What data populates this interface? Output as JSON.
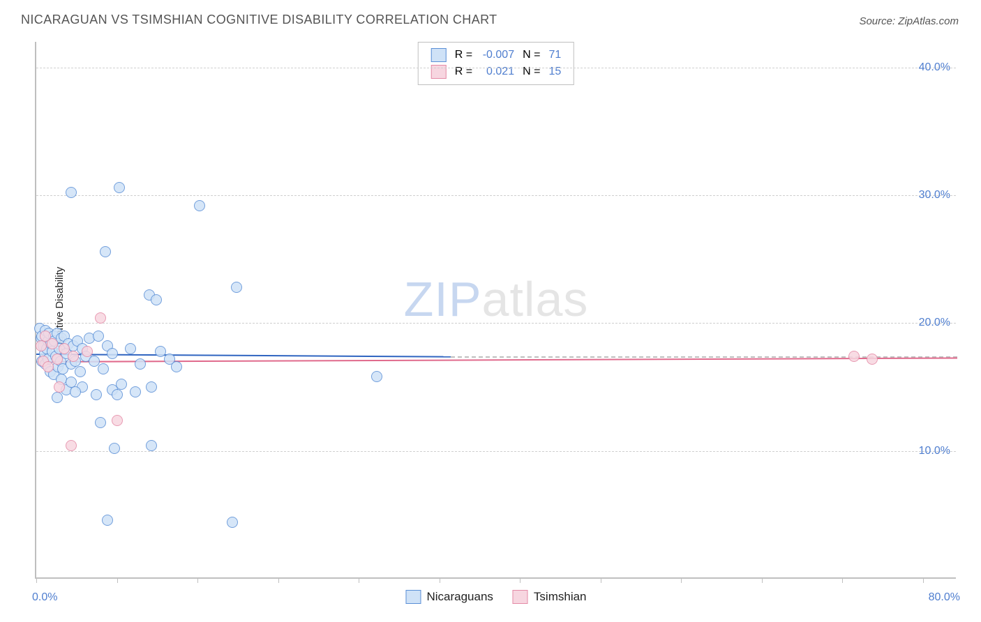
{
  "title": "NICARAGUAN VS TSIMSHIAN COGNITIVE DISABILITY CORRELATION CHART",
  "source": "Source: ZipAtlas.com",
  "ylabel": "Cognitive Disability",
  "watermark": {
    "part1": "ZIP",
    "part2": "atlas"
  },
  "chart": {
    "type": "scatter",
    "background_color": "#ffffff",
    "grid_color": "#cfcfcf",
    "axis_color": "#bfbfbf",
    "tick_label_color": "#4f7ecf",
    "text_color": "#222222",
    "marker_radius": 8,
    "marker_border_width": 1.5,
    "trend_line_width": 2,
    "xlim": [
      0,
      80
    ],
    "ylim": [
      0,
      42
    ],
    "x_axis": {
      "label_min": "0.0%",
      "label_max": "80.0%",
      "tick_positions": [
        0,
        7,
        14,
        21,
        28,
        35,
        42,
        49,
        56,
        63,
        70,
        77
      ]
    },
    "y_axis": {
      "gridlines": [
        {
          "value": 10,
          "label": "10.0%"
        },
        {
          "value": 20,
          "label": "20.0%"
        },
        {
          "value": 30,
          "label": "30.0%"
        },
        {
          "value": 40,
          "label": "40.0%"
        }
      ]
    },
    "series": [
      {
        "name": "Nicaraguans",
        "fill_color": "#cfe2f7",
        "border_color": "#5a8fd6",
        "trend_color": "#2f64c0",
        "r_value": "-0.007",
        "n_value": "71",
        "trend": {
          "x_start": 0,
          "x_end": 36,
          "y_start": 17.6,
          "y_end": 17.4,
          "dash_to_x": 80
        },
        "points": [
          [
            0.3,
            19.6
          ],
          [
            0.4,
            18.8
          ],
          [
            0.5,
            17.0
          ],
          [
            0.5,
            19.0
          ],
          [
            0.6,
            18.2
          ],
          [
            0.7,
            17.6
          ],
          [
            0.8,
            19.4
          ],
          [
            0.8,
            16.8
          ],
          [
            0.9,
            18.0
          ],
          [
            1.0,
            17.2
          ],
          [
            1.0,
            18.6
          ],
          [
            1.1,
            19.2
          ],
          [
            1.2,
            16.2
          ],
          [
            1.3,
            18.4
          ],
          [
            1.4,
            17.8
          ],
          [
            1.5,
            19.0
          ],
          [
            1.5,
            16.0
          ],
          [
            1.6,
            18.6
          ],
          [
            1.7,
            17.4
          ],
          [
            1.8,
            19.2
          ],
          [
            1.9,
            16.6
          ],
          [
            2.0,
            18.0
          ],
          [
            2.1,
            17.0
          ],
          [
            2.2,
            18.8
          ],
          [
            2.3,
            16.4
          ],
          [
            2.4,
            19.0
          ],
          [
            2.6,
            17.6
          ],
          [
            2.8,
            18.4
          ],
          [
            3.0,
            16.8
          ],
          [
            3.2,
            18.2
          ],
          [
            3.4,
            17.0
          ],
          [
            3.6,
            18.6
          ],
          [
            3.8,
            16.2
          ],
          [
            4.0,
            18.0
          ],
          [
            4.3,
            17.4
          ],
          [
            4.6,
            18.8
          ],
          [
            5.0,
            17.0
          ],
          [
            5.4,
            19.0
          ],
          [
            5.8,
            16.4
          ],
          [
            6.2,
            18.2
          ],
          [
            6.6,
            17.6
          ],
          [
            3.0,
            30.2
          ],
          [
            7.2,
            30.6
          ],
          [
            14.2,
            29.2
          ],
          [
            6.0,
            25.6
          ],
          [
            9.8,
            22.2
          ],
          [
            10.4,
            21.8
          ],
          [
            17.4,
            22.8
          ],
          [
            4.0,
            15.0
          ],
          [
            5.2,
            14.4
          ],
          [
            6.6,
            14.8
          ],
          [
            7.4,
            15.2
          ],
          [
            8.6,
            14.6
          ],
          [
            10.0,
            15.0
          ],
          [
            11.6,
            17.2
          ],
          [
            12.2,
            16.6
          ],
          [
            29.6,
            15.8
          ],
          [
            5.6,
            12.2
          ],
          [
            6.8,
            10.2
          ],
          [
            10.0,
            10.4
          ],
          [
            6.2,
            4.6
          ],
          [
            17.0,
            4.4
          ],
          [
            1.8,
            14.2
          ],
          [
            2.2,
            15.6
          ],
          [
            2.6,
            14.8
          ],
          [
            3.0,
            15.4
          ],
          [
            3.4,
            14.6
          ],
          [
            7.0,
            14.4
          ],
          [
            8.2,
            18.0
          ],
          [
            9.0,
            16.8
          ],
          [
            10.8,
            17.8
          ]
        ]
      },
      {
        "name": "Tsimshian",
        "fill_color": "#f7d6e0",
        "border_color": "#e48aa6",
        "trend_color": "#e06a8c",
        "r_value": "0.021",
        "n_value": "15",
        "trend": {
          "x_start": 0,
          "x_end": 80,
          "y_start": 17.0,
          "y_end": 17.3
        },
        "points": [
          [
            0.4,
            18.2
          ],
          [
            0.6,
            17.0
          ],
          [
            0.8,
            19.0
          ],
          [
            1.0,
            16.6
          ],
          [
            1.4,
            18.4
          ],
          [
            1.8,
            17.2
          ],
          [
            2.4,
            18.0
          ],
          [
            3.2,
            17.4
          ],
          [
            4.4,
            17.8
          ],
          [
            5.6,
            20.4
          ],
          [
            2.0,
            15.0
          ],
          [
            3.0,
            10.4
          ],
          [
            7.0,
            12.4
          ],
          [
            71.0,
            17.4
          ],
          [
            72.6,
            17.2
          ]
        ]
      }
    ],
    "legend_top": {
      "r_label": "R =",
      "n_label": "N ="
    },
    "legend_bottom": [
      {
        "label": "Nicaraguans",
        "series_index": 0
      },
      {
        "label": "Tsimshian",
        "series_index": 1
      }
    ]
  }
}
